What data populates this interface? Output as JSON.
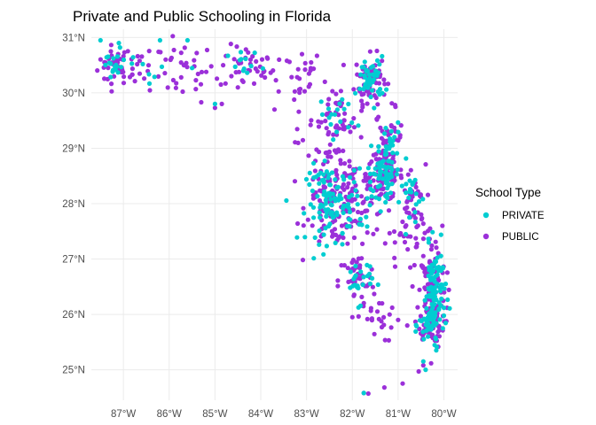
{
  "chart_data": {
    "type": "scatter",
    "title": "Private and Public Schooling in Florida",
    "xlabel": "",
    "ylabel": "",
    "xlim": [
      -87.7,
      -79.7
    ],
    "ylim": [
      24.45,
      31.15
    ],
    "grid": true,
    "x_ticks": [
      {
        "value": -87,
        "label": "87°W"
      },
      {
        "value": -86,
        "label": "86°W"
      },
      {
        "value": -85,
        "label": "85°W"
      },
      {
        "value": -84,
        "label": "84°W"
      },
      {
        "value": -83,
        "label": "83°W"
      },
      {
        "value": -82,
        "label": "82°W"
      },
      {
        "value": -81,
        "label": "81°W"
      },
      {
        "value": -80,
        "label": "80°W"
      }
    ],
    "y_ticks": [
      {
        "value": 25,
        "label": "25°N"
      },
      {
        "value": 26,
        "label": "26°N"
      },
      {
        "value": 27,
        "label": "27°N"
      },
      {
        "value": 28,
        "label": "28°N"
      },
      {
        "value": 29,
        "label": "29°N"
      },
      {
        "value": 30,
        "label": "30°N"
      },
      {
        "value": 31,
        "label": "31°N"
      }
    ],
    "legend": {
      "title": "School Type",
      "placement": "right",
      "entries": [
        {
          "label": "PRIVATE",
          "color": "#00cdd1"
        },
        {
          "label": "PUBLIC",
          "color": "#9b30d9"
        }
      ]
    },
    "series": [
      {
        "name": "PUBLIC",
        "color": "#9b30d9",
        "clusters": [
          {
            "x": -87.2,
            "y": 30.5,
            "sx": 0.18,
            "sy": 0.18,
            "n": 30
          },
          {
            "x": -86.6,
            "y": 30.45,
            "sx": 0.25,
            "sy": 0.2,
            "n": 25
          },
          {
            "x": -85.7,
            "y": 30.4,
            "sx": 0.35,
            "sy": 0.25,
            "n": 30
          },
          {
            "x": -84.3,
            "y": 30.45,
            "sx": 0.3,
            "sy": 0.2,
            "n": 35
          },
          {
            "x": -83.3,
            "y": 30.3,
            "sx": 0.35,
            "sy": 0.25,
            "n": 25
          },
          {
            "x": -81.6,
            "y": 30.25,
            "sx": 0.17,
            "sy": 0.22,
            "n": 70
          },
          {
            "x": -82.3,
            "y": 29.6,
            "sx": 0.3,
            "sy": 0.25,
            "n": 45
          },
          {
            "x": -81.2,
            "y": 29.2,
            "sx": 0.15,
            "sy": 0.25,
            "n": 30
          },
          {
            "x": -81.3,
            "y": 28.55,
            "sx": 0.2,
            "sy": 0.25,
            "n": 90
          },
          {
            "x": -82.4,
            "y": 28.0,
            "sx": 0.3,
            "sy": 0.4,
            "n": 110
          },
          {
            "x": -81.8,
            "y": 28.0,
            "sx": 0.3,
            "sy": 0.3,
            "n": 50
          },
          {
            "x": -80.7,
            "y": 28.0,
            "sx": 0.15,
            "sy": 0.35,
            "n": 35
          },
          {
            "x": -81.9,
            "y": 26.6,
            "sx": 0.2,
            "sy": 0.25,
            "n": 40
          },
          {
            "x": -80.25,
            "y": 26.4,
            "sx": 0.15,
            "sy": 0.45,
            "n": 110
          },
          {
            "x": -80.3,
            "y": 25.8,
            "sx": 0.15,
            "sy": 0.2,
            "n": 45
          },
          {
            "x": -81.5,
            "y": 25.9,
            "sx": 0.2,
            "sy": 0.2,
            "n": 20
          },
          {
            "x": -80.7,
            "y": 27.3,
            "sx": 0.3,
            "sy": 0.3,
            "n": 30
          },
          {
            "x": -82.6,
            "y": 29.0,
            "sx": 0.3,
            "sy": 0.25,
            "n": 25
          }
        ],
        "points": [
          [
            -81.75,
            24.58
          ],
          [
            -81.65,
            24.57
          ],
          [
            -81.3,
            24.68
          ],
          [
            -80.9,
            24.75
          ],
          [
            -80.55,
            24.97
          ],
          [
            -80.45,
            25.08
          ],
          [
            -85.0,
            29.73
          ],
          [
            -84.85,
            29.8
          ],
          [
            -85.3,
            29.83
          ],
          [
            -84.5,
            30.1
          ],
          [
            -83.6,
            30.6
          ],
          [
            -83.1,
            30.7
          ],
          [
            -82.9,
            30.55
          ],
          [
            -82.6,
            30.2
          ],
          [
            -83.7,
            29.7
          ],
          [
            -82.8,
            28.2
          ],
          [
            -81.0,
            25.9
          ],
          [
            -80.8,
            25.8
          ],
          [
            -81.35,
            26.2
          ],
          [
            -82.0,
            25.95
          ]
        ]
      },
      {
        "name": "PRIVATE",
        "color": "#00cdd1",
        "clusters": [
          {
            "x": -87.2,
            "y": 30.5,
            "sx": 0.15,
            "sy": 0.15,
            "n": 18
          },
          {
            "x": -86.5,
            "y": 30.4,
            "sx": 0.3,
            "sy": 0.15,
            "n": 8
          },
          {
            "x": -84.3,
            "y": 30.45,
            "sx": 0.2,
            "sy": 0.15,
            "n": 12
          },
          {
            "x": -81.6,
            "y": 30.25,
            "sx": 0.15,
            "sy": 0.2,
            "n": 45
          },
          {
            "x": -82.3,
            "y": 29.6,
            "sx": 0.2,
            "sy": 0.2,
            "n": 18
          },
          {
            "x": -81.3,
            "y": 28.55,
            "sx": 0.18,
            "sy": 0.22,
            "n": 70
          },
          {
            "x": -82.5,
            "y": 28.0,
            "sx": 0.25,
            "sy": 0.35,
            "n": 90
          },
          {
            "x": -81.9,
            "y": 28.0,
            "sx": 0.25,
            "sy": 0.25,
            "n": 25
          },
          {
            "x": -80.7,
            "y": 28.1,
            "sx": 0.12,
            "sy": 0.3,
            "n": 20
          },
          {
            "x": -81.85,
            "y": 26.6,
            "sx": 0.15,
            "sy": 0.2,
            "n": 25
          },
          {
            "x": -80.2,
            "y": 26.4,
            "sx": 0.12,
            "sy": 0.4,
            "n": 90
          },
          {
            "x": -80.3,
            "y": 25.8,
            "sx": 0.12,
            "sy": 0.18,
            "n": 35
          },
          {
            "x": -81.2,
            "y": 29.1,
            "sx": 0.12,
            "sy": 0.2,
            "n": 15
          }
        ],
        "points": [
          [
            -87.5,
            30.95
          ],
          [
            -87.1,
            30.9
          ],
          [
            -86.2,
            30.95
          ],
          [
            -85.6,
            30.95
          ],
          [
            -85.5,
            30.45
          ],
          [
            -85.0,
            29.8
          ],
          [
            -80.4,
            25.0
          ],
          [
            -80.45,
            25.15
          ],
          [
            -81.75,
            24.58
          ]
        ]
      }
    ]
  }
}
